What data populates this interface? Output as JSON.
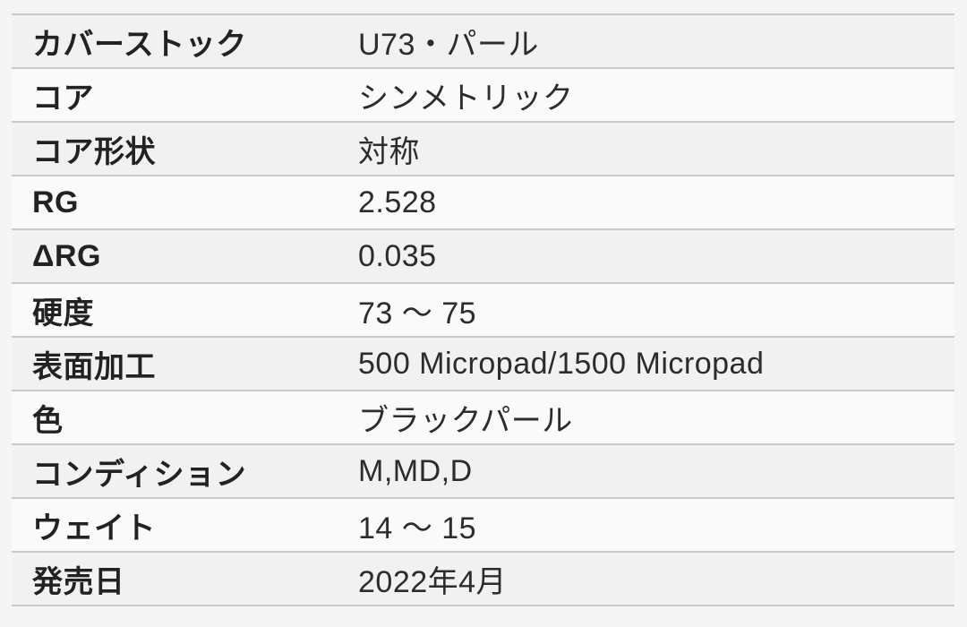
{
  "spec_table": {
    "rows": [
      {
        "label": "カバーストック",
        "value": "U73・パール"
      },
      {
        "label": "コア",
        "value": "シンメトリック"
      },
      {
        "label": "コア形状",
        "value": "対称"
      },
      {
        "label": "RG",
        "value": "2.528"
      },
      {
        "label": "ΔRG",
        "value": "0.035"
      },
      {
        "label": "硬度",
        "value": "73 〜 75"
      },
      {
        "label": "表面加工",
        "value": "500 Micropad/1500 Micropad"
      },
      {
        "label": "色",
        "value": "ブラックパール"
      },
      {
        "label": "コンディション",
        "value": "M,MD,D"
      },
      {
        "label": "ウェイト",
        "value": "14 〜 15"
      },
      {
        "label": "発売日",
        "value": "2022年4月"
      }
    ],
    "colors": {
      "page_background": "#f5f5f6",
      "row_odd_background": "#f1f1f2",
      "row_even_background": "#fafafa",
      "separator": "#c9c9cb",
      "label_text": "#222224",
      "value_text": "#2c2c2e"
    }
  }
}
